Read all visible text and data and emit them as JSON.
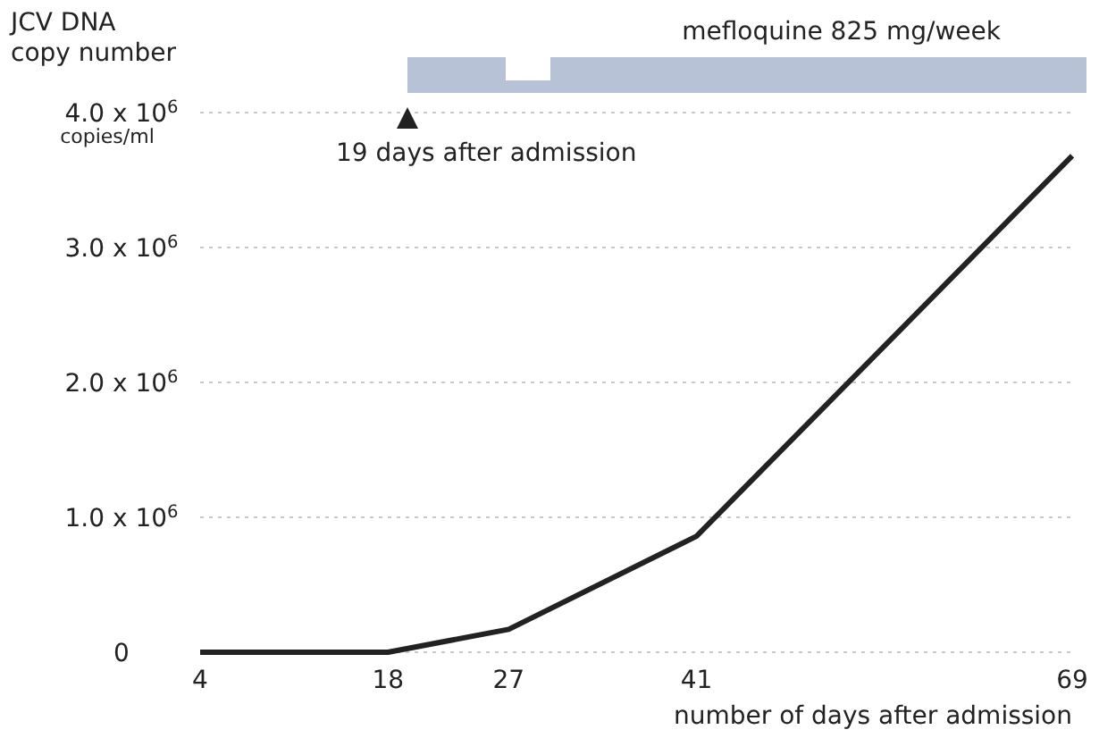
{
  "chart_data": {
    "type": "line",
    "ylabel": "JCV DNA\ncopy number",
    "xlabel": "number of days after admission",
    "x": [
      4,
      18,
      27,
      41,
      69
    ],
    "series": [
      {
        "color": "#222222",
        "values": [
          0,
          0,
          170000,
          860000,
          3680000
        ]
      }
    ],
    "xlim": [
      4,
      69
    ],
    "xticks": [
      4,
      18,
      27,
      41,
      69
    ],
    "ylim": [
      0,
      4000000
    ],
    "yticks": [
      {
        "value": 0,
        "label": "0"
      },
      {
        "value": 1000000,
        "label": "1.0 x 10$^{6}$"
      },
      {
        "value": 2000000,
        "label": "2.0 x 10$^{6}$"
      },
      {
        "value": 3000000,
        "label": "3.0 x 10$^{6}$"
      },
      {
        "value": 4000000,
        "label": "4.0 x 10$^{6}$"
      }
    ],
    "grid": "y",
    "marker": "none",
    "line_style": "solid",
    "annotations": [
      "copies/ml",
      "19 days after admission",
      "mefloquine 825 mg/week"
    ]
  }
}
